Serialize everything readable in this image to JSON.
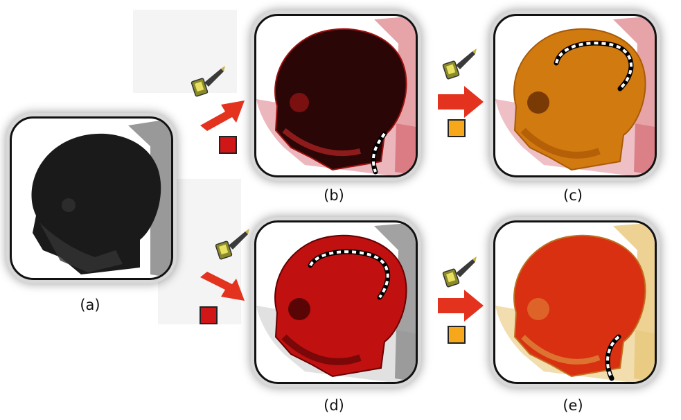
{
  "captions": {
    "a": "(a)",
    "b": "(b)",
    "c": "(c)",
    "d": "(d)",
    "e": "(e)"
  },
  "icons": {
    "brush": "paintbrush-icon",
    "arrow": "right-arrow-icon"
  },
  "colors": {
    "red_swatch": "#d01616",
    "orange_swatch": "#f6a81a",
    "arrow": "#e3321e",
    "panel_a_skull": "#1a1a1a",
    "panel_b_skull": "#2a0606",
    "panel_c_skull": "#d07a10",
    "panel_d_skull": "#c01010",
    "panel_e_skull": "#d83010",
    "panel_e_bg_tissue": "#e8c778"
  }
}
